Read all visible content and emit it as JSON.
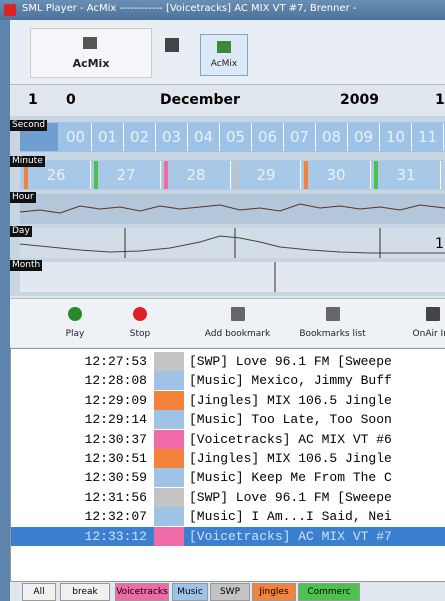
{
  "window": {
    "title": "SML Player - AcMix ------------ [Voicetracks] AC MIX VT #7, Brenner -"
  },
  "toolbar": {
    "buttons": [
      "AcMix",
      "AcMix"
    ]
  },
  "date": {
    "day": "1",
    "digit": "0",
    "month": "December",
    "year": "2009",
    "hour": "1"
  },
  "timeline": {
    "rows": [
      "Second",
      "Minute",
      "Hour",
      "Day",
      "Month"
    ],
    "seconds": [
      "00",
      "01",
      "02",
      "03",
      "04",
      "05",
      "06",
      "07",
      "08",
      "09",
      "10",
      "11"
    ],
    "minutes": [
      "26",
      "27",
      "28",
      "29",
      "30",
      "31"
    ],
    "day_mark": "1"
  },
  "controls": [
    "Play",
    "Stop",
    "Add bookmark",
    "Bookmarks list",
    "OnAir Int"
  ],
  "playlist": {
    "rows": [
      [
        "12:27:53",
        "[SWP] Love 96.1 FM [Sweepe",
        "#c3c3c3"
      ],
      [
        "12:28:08",
        "[Music] Mexico, Jimmy Buff",
        "#9ec3e6"
      ],
      [
        "12:29:09",
        "[Jingles] MIX 106.5 Jingle",
        "#f5823a"
      ],
      [
        "12:29:14",
        "[Music] Too Late, Too Soon",
        "#9ec3e6"
      ],
      [
        "12:30:37",
        "[Voicetracks] AC MIX VT #6",
        "#f06aa8"
      ],
      [
        "12:30:51",
        "[Jingles] MIX 106.5 Jingle",
        "#f5823a"
      ],
      [
        "12:30:59",
        "[Music] Keep Me From The C",
        "#9ec3e6"
      ],
      [
        "12:31:56",
        "[SWP] Love 96.1 FM [Sweepe",
        "#c3c3c3"
      ],
      [
        "12:32:07",
        "[Music] I Am...I Said, Nei",
        "#9ec3e6"
      ],
      [
        "12:33:12",
        "[Voicetracks] AC MIX VT #7",
        "#f06aa8"
      ]
    ]
  },
  "tabs": [
    [
      "All",
      "#f0f0f0"
    ],
    [
      "break",
      "#f0f0f0"
    ],
    [
      "Voicetracks",
      "#f06aa8"
    ],
    [
      "Music",
      "#9ec3e6"
    ],
    [
      "SWP",
      "#c3c3c3"
    ],
    [
      "Jingles",
      "#f5823a"
    ],
    [
      "Commerc",
      "#4cc24c"
    ]
  ]
}
